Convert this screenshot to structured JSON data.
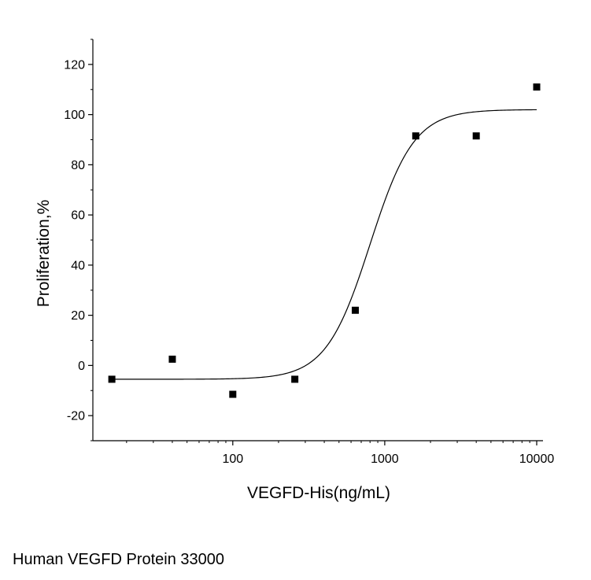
{
  "chart_data": {
    "type": "scatter",
    "title": "",
    "xlabel": "VEGFD-His(ng/mL)",
    "ylabel": "Proliferation,%",
    "x_scale": "log",
    "xlim": [
      12,
      11000
    ],
    "ylim": [
      -30,
      130
    ],
    "x_ticks": [
      100,
      1000,
      10000
    ],
    "x_tick_labels": [
      "100",
      "1000",
      "10000"
    ],
    "y_ticks": [
      -20,
      0,
      20,
      40,
      60,
      80,
      100,
      120
    ],
    "y_tick_labels": [
      "-20",
      "0",
      "20",
      "40",
      "60",
      "80",
      "100",
      "120"
    ],
    "grid": false,
    "colors": {
      "points": "#000000",
      "curve": "#000000",
      "axis": "#000000"
    },
    "points": [
      {
        "x": 16,
        "y": -5.5
      },
      {
        "x": 40,
        "y": 2.5
      },
      {
        "x": 100,
        "y": -11.5
      },
      {
        "x": 256,
        "y": -5.5
      },
      {
        "x": 640,
        "y": 22
      },
      {
        "x": 1600,
        "y": 91.5
      },
      {
        "x": 4000,
        "y": 91.5
      },
      {
        "x": 10000,
        "y": 111
      }
    ],
    "fit": {
      "bottom": -5.5,
      "top": 102,
      "ec50": 800,
      "hill": 3.0
    }
  },
  "caption": "Human VEGFD Protein 33000"
}
